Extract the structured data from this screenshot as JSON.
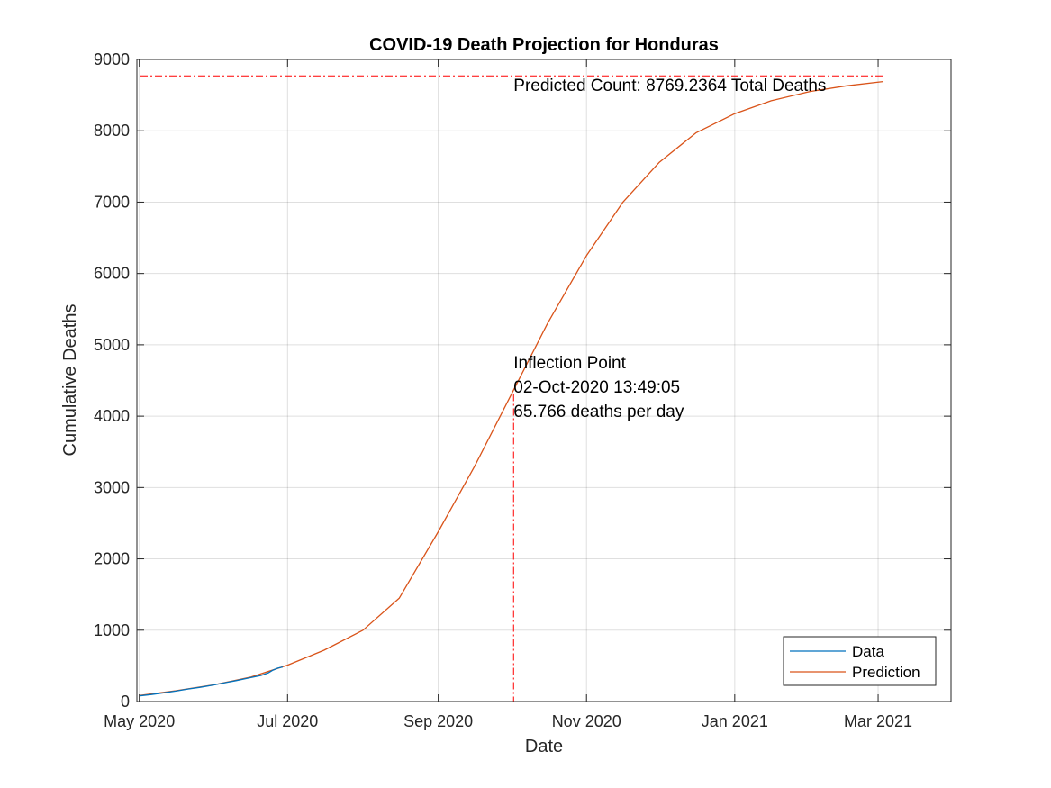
{
  "chart_data": {
    "type": "line",
    "title": "COVID-19 Death Projection for Honduras",
    "xlabel": "Date",
    "ylabel": "Cumulative Deaths",
    "xlim": [
      "2020-04-30",
      "2021-03-31"
    ],
    "ylim": [
      0,
      9000
    ],
    "grid": true,
    "x_ticks": [
      {
        "date": "2020-05-01",
        "label": "May 2020"
      },
      {
        "date": "2020-07-01",
        "label": "Jul 2020"
      },
      {
        "date": "2020-09-01",
        "label": "Sep 2020"
      },
      {
        "date": "2020-11-01",
        "label": "Nov 2020"
      },
      {
        "date": "2021-01-01",
        "label": "Jan 2021"
      },
      {
        "date": "2021-03-01",
        "label": "Mar 2021"
      }
    ],
    "y_ticks": [
      0,
      1000,
      2000,
      3000,
      4000,
      5000,
      6000,
      7000,
      8000,
      9000
    ],
    "legend": {
      "position": "bottom-right"
    },
    "series": [
      {
        "name": "Data",
        "color": "#0072BD",
        "points": [
          [
            "2020-05-01",
            80
          ],
          [
            "2020-05-06",
            99
          ],
          [
            "2020-05-11",
            122
          ],
          [
            "2020-05-16",
            146
          ],
          [
            "2020-05-21",
            176
          ],
          [
            "2020-05-26",
            199
          ],
          [
            "2020-05-31",
            228
          ],
          [
            "2020-06-05",
            262
          ],
          [
            "2020-06-10",
            294
          ],
          [
            "2020-06-15",
            330
          ],
          [
            "2020-06-20",
            365
          ],
          [
            "2020-06-23",
            400
          ],
          [
            "2020-06-25",
            440
          ],
          [
            "2020-06-27",
            468
          ],
          [
            "2020-06-29",
            485
          ]
        ]
      },
      {
        "name": "Prediction",
        "color": "#D95319",
        "points": [
          [
            "2020-05-01",
            84
          ],
          [
            "2020-05-16",
            152
          ],
          [
            "2020-06-01",
            236
          ],
          [
            "2020-06-16",
            344
          ],
          [
            "2020-07-01",
            510
          ],
          [
            "2020-07-16",
            720
          ],
          [
            "2020-08-01",
            1000
          ],
          [
            "2020-08-16",
            1450
          ],
          [
            "2020-09-01",
            2380
          ],
          [
            "2020-09-16",
            3300
          ],
          [
            "2020-10-01",
            4300
          ],
          [
            "2020-10-16",
            5300
          ],
          [
            "2020-11-01",
            6250
          ],
          [
            "2020-11-16",
            7000
          ],
          [
            "2020-12-01",
            7560
          ],
          [
            "2020-12-16",
            7970
          ],
          [
            "2021-01-01",
            8240
          ],
          [
            "2021-01-16",
            8420
          ],
          [
            "2021-02-01",
            8550
          ],
          [
            "2021-02-16",
            8630
          ],
          [
            "2021-03-03",
            8690
          ]
        ]
      }
    ],
    "reference_lines": {
      "horizontal": {
        "y": 8769.2364,
        "color": "#FF0000"
      },
      "vertical": {
        "x": "2020-10-02",
        "color": "#FF0000"
      }
    },
    "annotations": [
      {
        "text": "Predicted Count: 8769.2364 Total Deaths",
        "x": "2020-10-02",
        "y": 8560
      },
      {
        "text": "Inflection Point",
        "x": "2020-10-02",
        "y": 4670
      },
      {
        "text": "02-Oct-2020 13:49:05",
        "x": "2020-10-02",
        "y": 4330
      },
      {
        "text": "65.766 deaths per day",
        "x": "2020-10-02",
        "y": 3990
      }
    ]
  }
}
